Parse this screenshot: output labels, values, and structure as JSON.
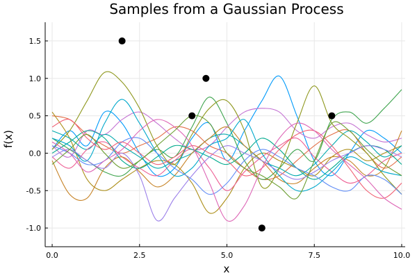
{
  "chart_data": {
    "type": "line",
    "title": "Samples from a Gaussian Process",
    "xlabel": "x",
    "ylabel": "f(x)",
    "xlim": [
      -0.2,
      10.1
    ],
    "ylim": [
      -1.25,
      1.75
    ],
    "xticks": [
      0.0,
      2.5,
      5.0,
      7.5,
      10.0
    ],
    "xtick_labels": [
      "0.0",
      "2.5",
      "5.0",
      "7.5",
      "10.0"
    ],
    "yticks": [
      -1.0,
      -0.5,
      0.0,
      0.5,
      1.0,
      1.5
    ],
    "ytick_labels": [
      "-1.0",
      "-0.5",
      "0.0",
      "0.5",
      "1.0",
      "1.5"
    ],
    "grid": true,
    "legend": "none",
    "x": [
      0,
      0.5,
      1,
      1.5,
      2,
      2.5,
      3,
      3.5,
      4,
      4.5,
      5,
      5.5,
      6,
      6.5,
      7,
      7.5,
      8,
      8.5,
      9,
      9.5,
      10
    ],
    "series": [
      {
        "color": "#009AFA",
        "values": [
          0.05,
          0.3,
          0.1,
          0.55,
          0.4,
          0.0,
          -0.3,
          -0.2,
          0.2,
          0.4,
          -0.1,
          0.3,
          0.7,
          1.03,
          0.5,
          -0.1,
          -0.3,
          0.0,
          0.3,
          0.2,
          0.0
        ]
      },
      {
        "color": "#E36F47",
        "values": [
          0.5,
          0.45,
          0.25,
          0.1,
          0.0,
          0.1,
          0.2,
          0.35,
          0.3,
          0.1,
          0.0,
          -0.2,
          -0.35,
          -0.3,
          -0.1,
          0.1,
          0.25,
          0.3,
          0.0,
          -0.2,
          -0.05
        ]
      },
      {
        "color": "#3EA44E",
        "values": [
          0.2,
          0.05,
          -0.1,
          -0.25,
          -0.3,
          -0.1,
          0.05,
          -0.05,
          0.35,
          0.75,
          0.4,
          -0.1,
          -0.35,
          -0.2,
          0.05,
          -0.1,
          0.45,
          0.55,
          0.4,
          0.6,
          0.85
        ]
      },
      {
        "color": "#C371D2",
        "values": [
          0.1,
          -0.05,
          0.3,
          0.25,
          0.45,
          0.55,
          0.4,
          0.2,
          0.05,
          0.1,
          0.35,
          0.55,
          0.6,
          0.55,
          0.3,
          0.2,
          0.35,
          0.4,
          0.25,
          0.15,
          0.2
        ]
      },
      {
        "color": "#AC8E18",
        "values": [
          0.55,
          0.2,
          -0.35,
          -0.5,
          -0.35,
          -0.2,
          -0.1,
          -0.15,
          -0.4,
          -0.8,
          -0.6,
          -0.2,
          0.0,
          -0.1,
          -0.2,
          -0.3,
          -0.05,
          0.05,
          -0.1,
          0.0,
          0.1
        ]
      },
      {
        "color": "#00A9AD",
        "values": [
          0.3,
          0.2,
          0.05,
          0.25,
          0.1,
          -0.05,
          -0.2,
          -0.1,
          0.0,
          0.2,
          0.25,
          0.1,
          -0.1,
          -0.2,
          -0.3,
          -0.15,
          0.1,
          0.3,
          0.15,
          -0.05,
          0.1
        ]
      },
      {
        "color": "#ED5E93",
        "values": [
          -0.05,
          -0.2,
          0.05,
          0.15,
          -0.05,
          -0.2,
          -0.3,
          -0.1,
          0.05,
          -0.2,
          -0.5,
          -0.25,
          -0.05,
          0.1,
          0.2,
          -0.05,
          -0.25,
          -0.4,
          -0.3,
          -0.1,
          0.0
        ]
      },
      {
        "color": "#C68225",
        "values": [
          -0.1,
          -0.55,
          -0.6,
          -0.2,
          -0.05,
          -0.25,
          -0.45,
          -0.3,
          0.0,
          0.2,
          0.35,
          0.1,
          -0.1,
          -0.35,
          -0.4,
          -0.2,
          -0.05,
          -0.1,
          -0.3,
          -0.2,
          0.3
        ]
      },
      {
        "color": "#00A98D",
        "values": [
          0.0,
          0.15,
          0.3,
          0.2,
          -0.1,
          -0.2,
          -0.05,
          0.1,
          0.05,
          -0.05,
          -0.15,
          0.0,
          0.2,
          0.05,
          -0.2,
          -0.35,
          -0.2,
          0.0,
          0.1,
          0.05,
          -0.15
        ]
      },
      {
        "color": "#8E971D",
        "values": [
          0.05,
          0.3,
          0.7,
          1.08,
          0.95,
          0.6,
          0.1,
          -0.15,
          0.25,
          0.6,
          0.7,
          0.3,
          -0.45,
          -0.2,
          0.4,
          0.9,
          0.4,
          0.2,
          0.0,
          -0.3,
          -0.55
        ]
      },
      {
        "color": "#00A8CB",
        "values": [
          0.2,
          0.1,
          -0.1,
          0.4,
          0.72,
          0.4,
          0.0,
          -0.3,
          -0.2,
          0.1,
          0.2,
          0.45,
          0.0,
          -0.3,
          -0.5,
          -0.45,
          -0.25,
          -0.05,
          -0.15,
          -0.25,
          -0.3
        ]
      },
      {
        "color": "#9B7FE9",
        "values": [
          -0.05,
          0.05,
          -0.1,
          -0.2,
          0.0,
          -0.3,
          -0.9,
          -0.6,
          -0.3,
          -0.05,
          0.1,
          0.0,
          -0.1,
          -0.25,
          -0.35,
          -0.25,
          -0.1,
          0.0,
          0.1,
          0.05,
          -0.05
        ]
      },
      {
        "color": "#618DF6",
        "values": [
          0.1,
          0.0,
          -0.15,
          -0.1,
          0.15,
          0.2,
          0.0,
          -0.2,
          -0.35,
          -0.55,
          -0.4,
          -0.1,
          0.05,
          -0.05,
          -0.2,
          -0.3,
          -0.45,
          -0.5,
          -0.3,
          -0.35,
          -0.55
        ]
      },
      {
        "color": "#F05F73",
        "values": [
          0.35,
          0.45,
          0.2,
          0.05,
          0.15,
          0.0,
          -0.15,
          -0.05,
          0.1,
          0.0,
          -0.1,
          -0.3,
          -0.2,
          0.05,
          0.25,
          0.3,
          0.1,
          -0.2,
          -0.5,
          -0.6,
          -0.4
        ]
      },
      {
        "color": "#DD64B5",
        "values": [
          0.15,
          0.0,
          -0.25,
          -0.1,
          0.05,
          0.3,
          0.45,
          0.35,
          0.1,
          -0.4,
          -0.9,
          -0.7,
          -0.2,
          0.2,
          0.4,
          0.3,
          0.05,
          -0.15,
          -0.35,
          -0.6,
          -0.75
        ]
      },
      {
        "color": "#6B9E32",
        "values": [
          -0.15,
          0.05,
          0.25,
          0.0,
          -0.2,
          -0.1,
          0.1,
          0.3,
          0.5,
          0.4,
          0.0,
          -0.2,
          -0.3,
          -0.45,
          -0.6,
          -0.1,
          0.4,
          0.3,
          0.05,
          -0.15,
          -0.3
        ]
      }
    ],
    "observations": {
      "color": "#000000",
      "x": [
        2.0,
        4.0,
        4.4,
        6.0,
        8.0
      ],
      "y": [
        1.5,
        0.5,
        1.0,
        -1.0,
        0.5
      ]
    }
  }
}
